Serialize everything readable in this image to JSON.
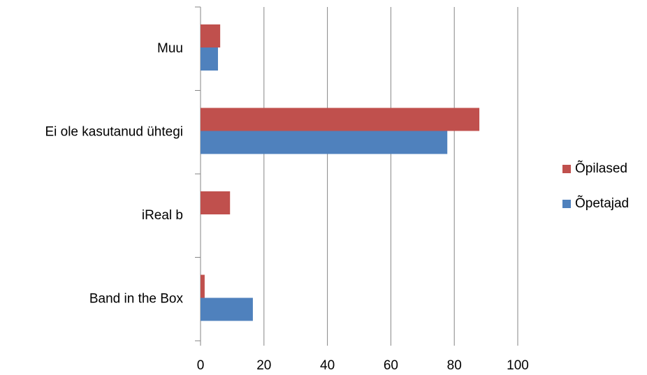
{
  "chart_data": {
    "type": "bar",
    "orientation": "horizontal",
    "categories": [
      "Muu",
      "Ei ole kasutanud ühtegi",
      "iReal b",
      "Band in the Box"
    ],
    "series": [
      {
        "name": "Õpilased",
        "color": "#c0504d",
        "values": [
          6.2,
          87.9,
          9.3,
          1.3
        ]
      },
      {
        "name": "Õpetajad",
        "color": "#4f81bd",
        "values": [
          5.5,
          77.8,
          0,
          16.5
        ]
      }
    ],
    "xlim": [
      0,
      100
    ],
    "xticks": [
      0,
      20,
      40,
      60,
      80,
      100
    ],
    "grid": true,
    "legend": "right"
  }
}
